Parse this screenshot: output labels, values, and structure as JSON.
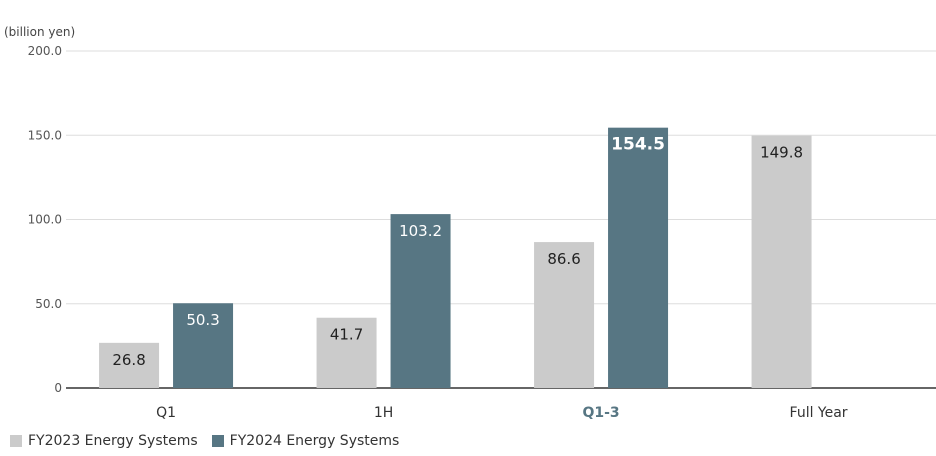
{
  "chart_data": {
    "type": "bar",
    "unit_label": "(billion yen)",
    "categories": [
      "Q1",
      "1H",
      "Q1-3",
      "Full Year"
    ],
    "highlight_category": "Q1-3",
    "series": [
      {
        "name": "FY2023 Energy Systems",
        "color": "#cbcbcb",
        "values": [
          26.8,
          41.7,
          86.6,
          149.8
        ],
        "labels": [
          "26.8",
          "41.7",
          "86.6",
          "149.8"
        ]
      },
      {
        "name": "FY2024 Energy Systems",
        "color": "#577683",
        "values": [
          50.3,
          103.2,
          154.5,
          null
        ],
        "labels": [
          "50.3",
          "103.2",
          "154.5",
          ""
        ]
      }
    ],
    "ylim": [
      0,
      200
    ],
    "yticks": [
      0,
      50,
      100,
      150,
      200
    ],
    "ytick_labels": [
      "0",
      "50.0",
      "100.0",
      "150.0",
      "200.0"
    ],
    "grid": true,
    "legend_position": "bottom-left",
    "colors": {
      "highlight_text": "#577683",
      "axis": "#333333",
      "grid": "#dddddd"
    }
  }
}
